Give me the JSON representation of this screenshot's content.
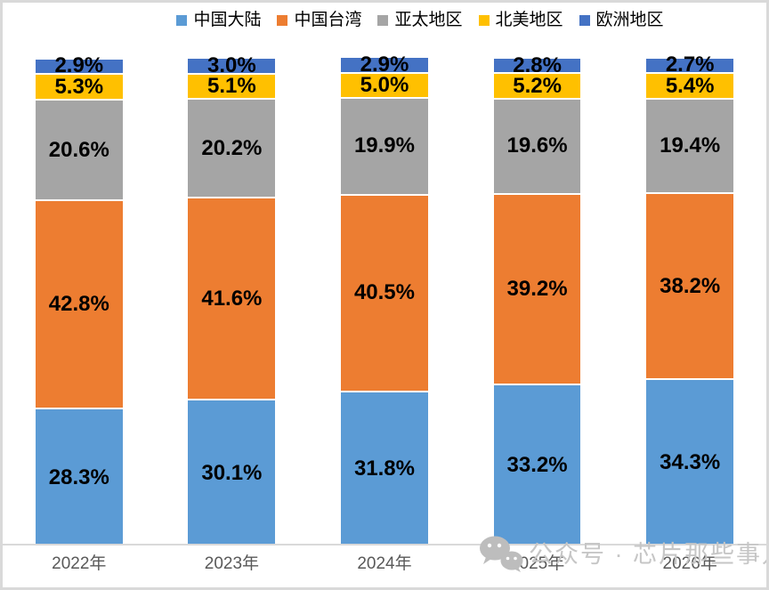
{
  "chart_data": {
    "type": "bar",
    "stacked": true,
    "orientation": "vertical",
    "grid": false,
    "legend_position": "top",
    "ylim": [
      0,
      100
    ],
    "value_suffix": "%",
    "categories": [
      "2022年",
      "2023年",
      "2024年",
      "2025年",
      "2026年"
    ],
    "series": [
      {
        "key": "mainland-china",
        "name": "中国大陆",
        "color": "#5B9BD5",
        "values": [
          28.3,
          30.1,
          31.8,
          33.2,
          34.3
        ]
      },
      {
        "key": "taiwan-china",
        "name": "中国台湾",
        "color": "#ED7D31",
        "values": [
          42.8,
          41.6,
          40.5,
          39.2,
          38.2
        ]
      },
      {
        "key": "asia-pacific",
        "name": "亚太地区",
        "color": "#A5A5A5",
        "values": [
          20.6,
          20.2,
          19.9,
          19.6,
          19.4
        ]
      },
      {
        "key": "north-america",
        "name": "北美地区",
        "color": "#FFC000",
        "values": [
          5.3,
          5.1,
          5.0,
          5.2,
          5.4
        ]
      },
      {
        "key": "europe",
        "name": "欧洲地区",
        "color": "#4472C4",
        "values": [
          2.9,
          3.0,
          2.9,
          2.8,
          2.7
        ]
      }
    ]
  },
  "colors": {
    "frame_border": "#D9D9D9",
    "axis_line": "#D9D9D9",
    "axis_label": "#595959",
    "segment_label": "#000000",
    "legend_label": "#000000",
    "watermark": "#C6C6C6"
  },
  "watermark": {
    "icon": "wechat-icon",
    "text": "公众号 · 芯片那些事儿"
  }
}
